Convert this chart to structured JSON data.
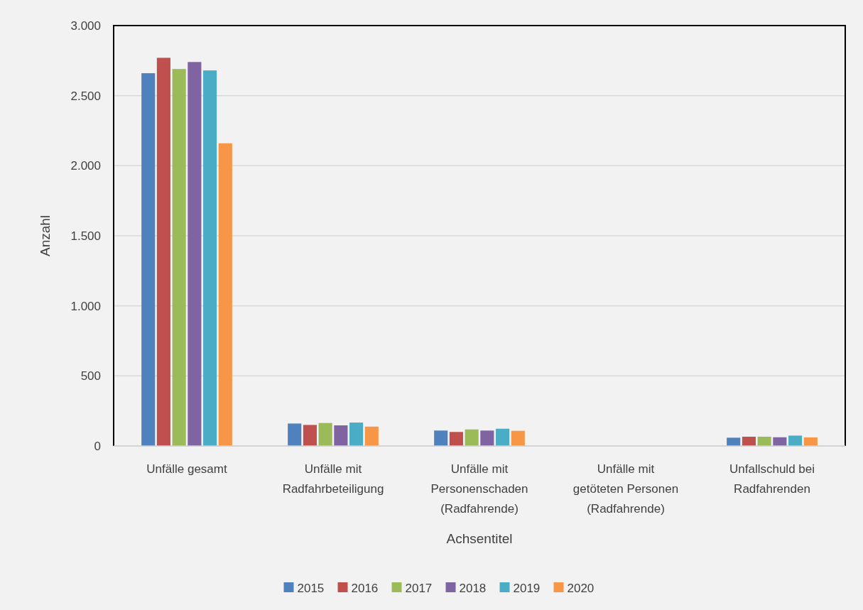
{
  "chart_data": {
    "type": "bar",
    "xlabel": "Achsentitel",
    "ylabel": "Anzahl",
    "categories": [
      "Unfälle gesamt",
      "Unfälle mit Radfahrbeteiligung",
      "Unfälle mit Personenschaden (Radfahrende)",
      "Unfälle mit getöteten Personen (Radfahrende)",
      "Unfallschuld bei Radfahrenden"
    ],
    "series": [
      {
        "name": "2015",
        "color": "#4f81bd",
        "values": [
          2660,
          160,
          110,
          0,
          59
        ]
      },
      {
        "name": "2016",
        "color": "#c0504d",
        "values": [
          2770,
          150,
          100,
          0,
          66
        ]
      },
      {
        "name": "2017",
        "color": "#9bbb59",
        "values": [
          2690,
          164,
          118,
          0,
          66
        ]
      },
      {
        "name": "2018",
        "color": "#8064a2",
        "values": [
          2740,
          147,
          110,
          0,
          62
        ]
      },
      {
        "name": "2019",
        "color": "#4bacc6",
        "values": [
          2680,
          167,
          123,
          0,
          74
        ]
      },
      {
        "name": "2020",
        "color": "#f79646",
        "values": [
          2160,
          138,
          108,
          0,
          61
        ]
      }
    ],
    "ylim": [
      0,
      3000
    ],
    "yticks": [
      0,
      500,
      {
        "value": 1000,
        "label": "1.000"
      },
      {
        "value": 1500,
        "label": "1.500"
      },
      {
        "value": 2000,
        "label": "2.000"
      },
      {
        "value": 2500,
        "label": "2.500"
      },
      {
        "value": 3000,
        "label": "3.000"
      }
    ],
    "grid": "y",
    "legend": "bottom"
  }
}
